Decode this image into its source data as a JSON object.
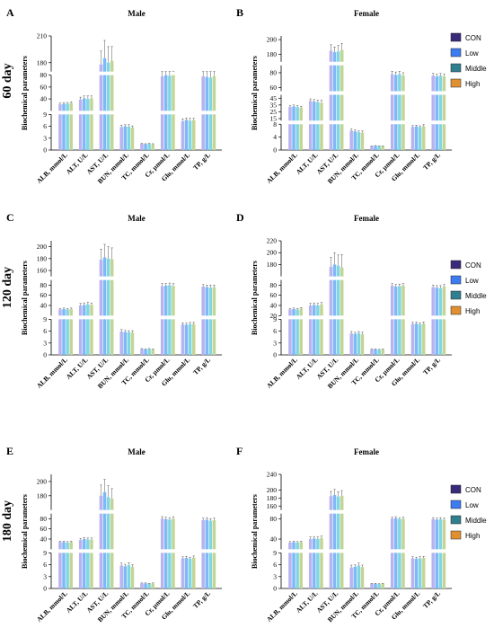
{
  "figure": {
    "rows": [
      {
        "label": "60 day"
      },
      {
        "label": "120 day"
      },
      {
        "label": "180 day"
      }
    ],
    "legend": {
      "items": [
        {
          "label": "CON",
          "color": "#3a2a7a"
        },
        {
          "label": "Low",
          "color": "#3d7bf0"
        },
        {
          "label": "Middle",
          "color": "#2f7f8f"
        },
        {
          "label": "High",
          "color": "#e09030"
        }
      ]
    }
  },
  "chart_data": [
    {
      "panel": "A",
      "title": "Male",
      "type": "bar",
      "ylabel": "Biochemical parameters",
      "categories": [
        "ALB, mmol/L",
        "ALT, U/L",
        "AST, U/L",
        "BUN, mmol/L",
        "TC, mmol/L",
        "Cr, μmol/L",
        "Glu, mmol/L",
        "TP, g/L"
      ],
      "broken_axis": [
        {
          "range": [
            0,
            9
          ],
          "ticks": [
            0,
            3,
            6,
            9
          ]
        },
        {
          "range": [
            20,
            80
          ],
          "ticks": [
            40,
            60,
            80
          ]
        },
        {
          "range": [
            170,
            210
          ],
          "ticks": [
            180,
            210
          ]
        }
      ],
      "series": [
        {
          "name": "CON",
          "values": [
            31,
            39,
            178,
            5.8,
            1.6,
            78,
            7.3,
            78
          ],
          "errors": [
            2,
            4,
            15,
            0.5,
            0.1,
            4,
            0.6,
            4
          ]
        },
        {
          "name": "Low",
          "values": [
            32,
            41,
            185,
            6.0,
            1.5,
            80,
            7.6,
            77
          ],
          "errors": [
            2,
            4,
            20,
            0.4,
            0.1,
            4,
            0.5,
            4
          ]
        },
        {
          "name": "Middle",
          "values": [
            32,
            40,
            180,
            5.9,
            1.6,
            79,
            7.4,
            76
          ],
          "errors": [
            2,
            5,
            18,
            0.5,
            0.1,
            4,
            0.6,
            5
          ]
        },
        {
          "name": "High",
          "values": [
            33,
            41,
            182,
            5.7,
            1.5,
            81,
            7.5,
            78
          ],
          "errors": [
            2,
            4,
            16,
            0.4,
            0.1,
            5,
            0.5,
            4
          ]
        }
      ]
    },
    {
      "panel": "B",
      "title": "Female",
      "type": "bar",
      "ylabel": "Biochemical parameters",
      "categories": [
        "ALB, mmol/L",
        "ALT, U/L",
        "AST, U/L",
        "BUN, mmol/L",
        "TC, mmol/L",
        "Cr, μmol/L",
        "Glu, mmol/L",
        "TP, g/L"
      ],
      "broken_axis": [
        {
          "range": [
            0,
            8
          ],
          "ticks": [
            0,
            4,
            8
          ]
        },
        {
          "range": [
            12,
            50
          ],
          "ticks": [
            15,
            25,
            35,
            45
          ]
        },
        {
          "range": [
            55,
            90
          ],
          "ticks": [
            60,
            80
          ]
        },
        {
          "range": [
            170,
            205
          ],
          "ticks": [
            180,
            200
          ]
        }
      ],
      "series": [
        {
          "name": "CON",
          "values": [
            32,
            41,
            185,
            6.0,
            1.2,
            78,
            7.2,
            76
          ],
          "errors": [
            2,
            3,
            8,
            0.5,
            0.1,
            4,
            0.4,
            3
          ]
        },
        {
          "name": "Low",
          "values": [
            33,
            40,
            183,
            5.8,
            1.3,
            77,
            7.3,
            75
          ],
          "errors": [
            2,
            3,
            7,
            0.4,
            0.1,
            4,
            0.4,
            3
          ]
        },
        {
          "name": "Middle",
          "values": [
            32,
            39,
            184,
            5.5,
            1.2,
            78,
            7.1,
            76
          ],
          "errors": [
            2,
            3,
            8,
            0.4,
            0.1,
            4,
            0.4,
            3
          ]
        },
        {
          "name": "High",
          "values": [
            31,
            38,
            186,
            5.4,
            1.2,
            76,
            7.4,
            75
          ],
          "errors": [
            2,
            4,
            9,
            0.5,
            0.1,
            4,
            0.5,
            3
          ]
        }
      ]
    },
    {
      "panel": "C",
      "title": "Male",
      "type": "bar",
      "ylabel": "Biochemical parameters",
      "categories": [
        "ALB, mmol/L",
        "ALT, U/L",
        "AST, U/L",
        "BUN, mmol/L",
        "TC, mmol/L",
        "Cr, μmol/L",
        "Glu, mmol/L",
        "TP, g/L"
      ],
      "broken_axis": [
        {
          "range": [
            0,
            9
          ],
          "ticks": [
            0,
            3,
            6,
            9
          ]
        },
        {
          "range": [
            20,
            90
          ],
          "ticks": [
            40,
            60,
            80
          ]
        },
        {
          "range": [
            150,
            210
          ],
          "ticks": [
            160,
            180,
            200
          ]
        }
      ],
      "series": [
        {
          "name": "CON",
          "values": [
            32,
            40,
            178,
            5.9,
            1.5,
            78,
            7.7,
            77
          ],
          "errors": [
            2,
            4,
            18,
            0.5,
            0.1,
            5,
            0.4,
            4
          ]
        },
        {
          "name": "Low",
          "values": [
            33,
            41,
            182,
            5.8,
            1.4,
            79,
            7.6,
            76
          ],
          "errors": [
            2,
            4,
            22,
            0.4,
            0.1,
            4,
            0.4,
            4
          ]
        },
        {
          "name": "Middle",
          "values": [
            32,
            42,
            180,
            5.7,
            1.5,
            80,
            7.8,
            75
          ],
          "errors": [
            2,
            4,
            20,
            0.4,
            0.1,
            4,
            0.4,
            5
          ]
        },
        {
          "name": "High",
          "values": [
            33,
            41,
            179,
            5.6,
            1.4,
            78,
            7.8,
            76
          ],
          "errors": [
            2,
            4,
            19,
            0.5,
            0.1,
            5,
            0.4,
            4
          ]
        }
      ]
    },
    {
      "panel": "D",
      "title": "Female",
      "type": "bar",
      "ylabel": "Biochemical parameters",
      "categories": [
        "ALB, mmol/L",
        "ALT, U/L",
        "AST, U/L",
        "BUN, mmol/L",
        "TC, mmol/L",
        "Cr, μmol/L",
        "Glu, mmol/L",
        "TP, g/L"
      ],
      "broken_axis": [
        {
          "range": [
            0,
            9
          ],
          "ticks": [
            0,
            3,
            6,
            9
          ]
        },
        {
          "range": [
            20,
            90
          ],
          "ticks": [
            20,
            40,
            60,
            80
          ]
        },
        {
          "range": [
            160,
            220
          ],
          "ticks": [
            180,
            200,
            220
          ]
        }
      ],
      "series": [
        {
          "name": "CON",
          "values": [
            32,
            40,
            176,
            5.4,
            1.4,
            79,
            7.8,
            76
          ],
          "errors": [
            2,
            4,
            16,
            0.5,
            0.1,
            4,
            0.4,
            4
          ]
        },
        {
          "name": "Low",
          "values": [
            33,
            41,
            180,
            5.3,
            1.4,
            77,
            7.9,
            75
          ],
          "errors": [
            2,
            4,
            20,
            0.4,
            0.1,
            4,
            0.4,
            4
          ]
        },
        {
          "name": "Middle",
          "values": [
            32,
            40,
            178,
            5.5,
            1.3,
            78,
            7.7,
            74
          ],
          "errors": [
            2,
            4,
            18,
            0.4,
            0.1,
            4,
            0.4,
            5
          ]
        },
        {
          "name": "High",
          "values": [
            34,
            42,
            175,
            5.2,
            1.4,
            79,
            7.9,
            77
          ],
          "errors": [
            2,
            4,
            22,
            0.5,
            0.1,
            4,
            0.4,
            4
          ]
        }
      ]
    },
    {
      "panel": "E",
      "title": "Male",
      "type": "bar",
      "ylabel": "Biochemical parameters",
      "categories": [
        "ALB, mmol/L",
        "ALT, U/L",
        "AST, U/L",
        "BUN, mmol/L",
        "TC, mmol/L",
        "Cr, μmol/L",
        "Glu, mmol/L",
        "TP, g/L"
      ],
      "broken_axis": [
        {
          "range": [
            0,
            9
          ],
          "ticks": [
            0,
            3,
            6,
            9
          ]
        },
        {
          "range": [
            20,
            90
          ],
          "ticks": [
            40,
            60,
            80
          ]
        },
        {
          "range": [
            160,
            210
          ],
          "ticks": [
            180,
            200
          ]
        }
      ],
      "series": [
        {
          "name": "CON",
          "values": [
            34,
            38,
            180,
            5.8,
            1.3,
            80,
            7.6,
            77
          ],
          "errors": [
            2,
            3,
            15,
            0.6,
            0.1,
            4,
            0.4,
            4
          ]
        },
        {
          "name": "Low",
          "values": [
            34,
            40,
            185,
            5.6,
            1.3,
            79,
            7.7,
            78
          ],
          "errors": [
            2,
            3,
            18,
            0.5,
            0.1,
            4,
            0.4,
            4
          ]
        },
        {
          "name": "Middle",
          "values": [
            33,
            39,
            178,
            5.9,
            1.2,
            78,
            7.5,
            76
          ],
          "errors": [
            2,
            3,
            16,
            0.6,
            0.1,
            4,
            0.4,
            4
          ]
        },
        {
          "name": "High",
          "values": [
            34,
            39,
            176,
            5.5,
            1.3,
            80,
            7.8,
            77
          ],
          "errors": [
            2,
            3,
            14,
            0.5,
            0.1,
            4,
            0.4,
            4
          ]
        }
      ]
    },
    {
      "panel": "F",
      "title": "Female",
      "type": "bar",
      "ylabel": "Biochemical parameters",
      "categories": [
        "ALB, mmol/L",
        "ALT, U/L",
        "AST, U/L",
        "BUN, mmol/L",
        "TC, mmol/L",
        "Cr, μmol/L",
        "Glu, mmol/L",
        "TP, g/L"
      ],
      "broken_axis": [
        {
          "range": [
            0,
            9
          ],
          "ticks": [
            0,
            3,
            6,
            9
          ]
        },
        {
          "range": [
            20,
            90
          ],
          "ticks": [
            40,
            80
          ]
        },
        {
          "range": [
            150,
            240
          ],
          "ticks": [
            160,
            180,
            200,
            240
          ]
        }
      ],
      "series": [
        {
          "name": "CON",
          "values": [
            33,
            40,
            185,
            5.3,
            1.2,
            80,
            7.6,
            79
          ],
          "errors": [
            2,
            4,
            12,
            0.6,
            0.1,
            3,
            0.4,
            3
          ]
        },
        {
          "name": "Low",
          "values": [
            34,
            41,
            188,
            5.5,
            1.2,
            81,
            7.5,
            78
          ],
          "errors": [
            2,
            4,
            14,
            0.5,
            0.1,
            3,
            0.4,
            3
          ]
        },
        {
          "name": "Middle",
          "values": [
            33,
            40,
            184,
            5.8,
            1.1,
            79,
            7.6,
            79
          ],
          "errors": [
            2,
            4,
            12,
            0.6,
            0.1,
            3,
            0.4,
            3
          ]
        },
        {
          "name": "High",
          "values": [
            34,
            42,
            186,
            5.4,
            1.2,
            80,
            7.7,
            78
          ],
          "errors": [
            2,
            4,
            13,
            0.5,
            0.1,
            3,
            0.4,
            3
          ]
        }
      ]
    }
  ]
}
